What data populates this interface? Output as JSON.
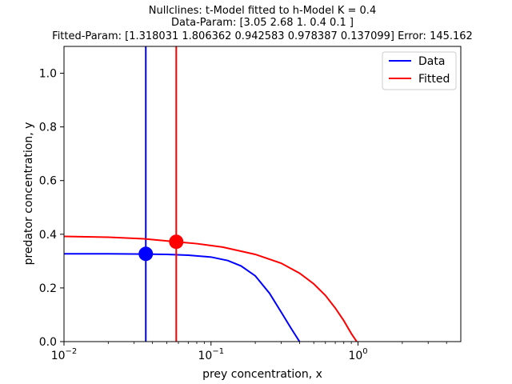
{
  "chart_data": {
    "type": "line",
    "title_lines": [
      "Nullclines: t-Model fitted to h-Model K = 0.4",
      "Data-Param: [3.05 2.68 1.   0.4  0.1 ]",
      "Fitted-Param: [1.318031 1.806362 0.942583 0.978387 0.137099] Error: 145.162"
    ],
    "xlabel": "prey concentration, x",
    "ylabel": "predator concentration, y",
    "xscale": "log",
    "xlim": [
      0.01,
      5
    ],
    "ylim": [
      0,
      1.1
    ],
    "x_ticks": [
      {
        "value": 0.01,
        "label": "10",
        "exp": "−2"
      },
      {
        "value": 0.1,
        "label": "10",
        "exp": "−1"
      },
      {
        "value": 1,
        "label": "10",
        "exp": "0"
      }
    ],
    "y_ticks": [
      {
        "value": 0.0,
        "label": "0.0"
      },
      {
        "value": 0.2,
        "label": "0.2"
      },
      {
        "value": 0.4,
        "label": "0.4"
      },
      {
        "value": 0.6,
        "label": "0.6"
      },
      {
        "value": 0.8,
        "label": "0.8"
      },
      {
        "value": 1.0,
        "label": "1.0"
      }
    ],
    "grid": false,
    "legend_position": "top-right",
    "series": [
      {
        "name": "Data",
        "color": "#0000ff",
        "vertical_nullcline_x": 0.036,
        "curve": {
          "x": [
            0.01,
            0.02,
            0.036,
            0.05,
            0.07,
            0.1,
            0.13,
            0.16,
            0.2,
            0.25,
            0.3,
            0.35,
            0.4
          ],
          "y": [
            0.327,
            0.327,
            0.326,
            0.325,
            0.322,
            0.315,
            0.302,
            0.282,
            0.245,
            0.18,
            0.11,
            0.05,
            0.0
          ]
        },
        "equilibrium": {
          "x": 0.036,
          "y": 0.327
        }
      },
      {
        "name": "Fitted",
        "color": "#ff0000",
        "vertical_nullcline_x": 0.058,
        "curve": {
          "x": [
            0.01,
            0.02,
            0.035,
            0.058,
            0.08,
            0.12,
            0.2,
            0.3,
            0.4,
            0.5,
            0.6,
            0.7,
            0.8,
            0.9,
            0.98
          ],
          "y": [
            0.392,
            0.389,
            0.383,
            0.372,
            0.365,
            0.352,
            0.325,
            0.292,
            0.255,
            0.215,
            0.172,
            0.125,
            0.078,
            0.03,
            0.0
          ]
        },
        "equilibrium": {
          "x": 0.058,
          "y": 0.372
        }
      }
    ]
  }
}
